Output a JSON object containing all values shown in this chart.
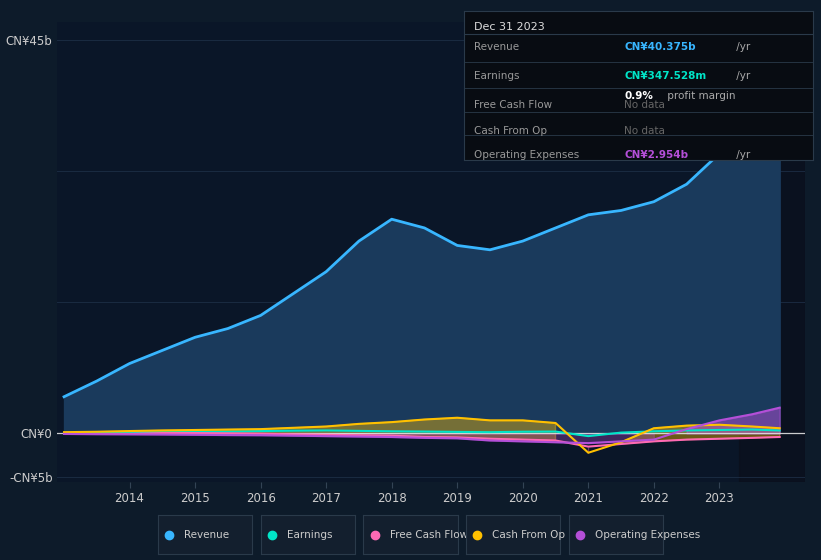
{
  "background_color": "#0d1b2a",
  "plot_bg_color": "#0a1628",
  "years": [
    2013.0,
    2013.5,
    2014.0,
    2014.5,
    2015.0,
    2015.5,
    2016.0,
    2016.5,
    2017.0,
    2017.5,
    2018.0,
    2018.5,
    2019.0,
    2019.5,
    2020.0,
    2020.5,
    2021.0,
    2021.5,
    2022.0,
    2022.5,
    2023.0,
    2023.5,
    2023.92
  ],
  "revenue": [
    4.2,
    6.0,
    8.0,
    9.5,
    11.0,
    12.0,
    13.5,
    16.0,
    18.5,
    22.0,
    24.5,
    23.5,
    21.5,
    21.0,
    22.0,
    23.5,
    25.0,
    25.5,
    26.5,
    28.5,
    32.0,
    38.0,
    40.375
  ],
  "earnings": [
    0.05,
    0.1,
    0.12,
    0.15,
    0.18,
    0.22,
    0.28,
    0.32,
    0.35,
    0.3,
    0.25,
    0.22,
    0.18,
    0.15,
    0.2,
    0.22,
    -0.3,
    0.1,
    0.25,
    0.35,
    0.4,
    0.45,
    0.348
  ],
  "free_cash_flow": [
    -0.05,
    -0.05,
    -0.05,
    0.05,
    0.05,
    0.02,
    -0.02,
    -0.1,
    -0.15,
    -0.2,
    -0.25,
    -0.4,
    -0.45,
    -0.6,
    -0.7,
    -0.8,
    -1.5,
    -1.2,
    -0.9,
    -0.7,
    -0.6,
    -0.5,
    -0.4
  ],
  "cash_from_op": [
    0.15,
    0.2,
    0.28,
    0.35,
    0.4,
    0.45,
    0.5,
    0.65,
    0.8,
    1.1,
    1.3,
    1.6,
    1.8,
    1.5,
    1.5,
    1.2,
    -2.2,
    -1.0,
    0.6,
    0.9,
    1.0,
    0.8,
    0.6
  ],
  "operating_expenses": [
    -0.05,
    -0.08,
    -0.1,
    -0.12,
    -0.15,
    -0.18,
    -0.2,
    -0.25,
    -0.3,
    -0.35,
    -0.4,
    -0.5,
    -0.55,
    -0.8,
    -0.9,
    -1.0,
    -1.1,
    -0.9,
    -0.7,
    0.5,
    1.5,
    2.2,
    2.954
  ],
  "ylim": [
    -5.5,
    47
  ],
  "ytick_positions": [
    -5,
    0,
    15,
    30,
    45
  ],
  "ytick_labels": [
    "-CN¥5b",
    "CN¥0",
    "",
    "",
    "CN¥45b"
  ],
  "xtick_years": [
    2014,
    2015,
    2016,
    2017,
    2018,
    2019,
    2020,
    2021,
    2022,
    2023
  ],
  "revenue_color": "#38b6ff",
  "earnings_color": "#00e5c8",
  "fcf_color": "#ff69b4",
  "cash_op_color": "#ffc000",
  "opex_color": "#b44fd8",
  "fill_color": "#1a3a5c",
  "grid_color": "#1e3048",
  "text_color": "#cccccc",
  "zero_line_color": "#e0e0e0",
  "legend_items": [
    "Revenue",
    "Earnings",
    "Free Cash Flow",
    "Cash From Op",
    "Operating Expenses"
  ],
  "legend_colors": [
    "#38b6ff",
    "#00e5c8",
    "#ff69b4",
    "#ffc000",
    "#b44fd8"
  ],
  "tooltip": {
    "title": "Dec 31 2023",
    "rows": [
      {
        "label": "Revenue",
        "value": "CN¥40.375b",
        "value_color": "#38b6ff",
        "suffix": " /yr",
        "extra": null
      },
      {
        "label": "Earnings",
        "value": "CN¥347.528m",
        "value_color": "#00e5c8",
        "suffix": " /yr",
        "extra": "0.9% profit margin"
      },
      {
        "label": "Free Cash Flow",
        "value": "No data",
        "value_color": "#666666",
        "suffix": "",
        "extra": null
      },
      {
        "label": "Cash From Op",
        "value": "No data",
        "value_color": "#666666",
        "suffix": "",
        "extra": null
      },
      {
        "label": "Operating Expenses",
        "value": "CN¥2.954b",
        "value_color": "#b44fd8",
        "suffix": " /yr",
        "extra": null
      }
    ]
  }
}
